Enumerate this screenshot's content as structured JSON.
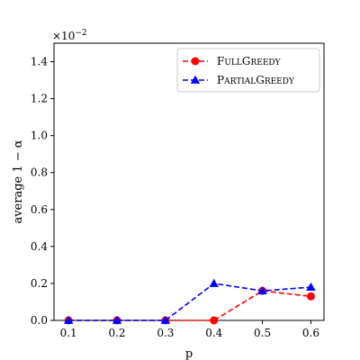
{
  "chart_data": {
    "type": "line",
    "xlabel": "p",
    "ylabel": "average 1 − α",
    "scale_label": "×10",
    "scale_exponent": "−2",
    "x": [
      0.1,
      0.2,
      0.3,
      0.4,
      0.5,
      0.6
    ],
    "x_ticks": [
      "0.1",
      "0.2",
      "0.3",
      "0.4",
      "0.5",
      "0.6"
    ],
    "y_ticks": [
      "0.0",
      "0.2",
      "0.4",
      "0.6",
      "0.8",
      "1.0",
      "1.2",
      "1.4"
    ],
    "xlim": [
      0.07,
      0.627
    ],
    "ylim": [
      0.0,
      1.5
    ],
    "grid": false,
    "legend_placement": "top-right",
    "series": [
      {
        "name": "FullGreedy",
        "label_first": "F",
        "label_rest": "ULL",
        "label_first2": "G",
        "label_rest2": "REEDY",
        "color": "#ff0000",
        "marker": "circle",
        "values": [
          0.0,
          0.0,
          0.0,
          0.0,
          0.16,
          0.13
        ]
      },
      {
        "name": "PartialGreedy",
        "label_first": "P",
        "label_rest": "ARTIAL",
        "label_first2": "G",
        "label_rest2": "REEDY",
        "color": "#0000ff",
        "marker": "triangle",
        "values": [
          0.0,
          0.0,
          0.0,
          0.2,
          0.16,
          0.18
        ]
      }
    ]
  }
}
